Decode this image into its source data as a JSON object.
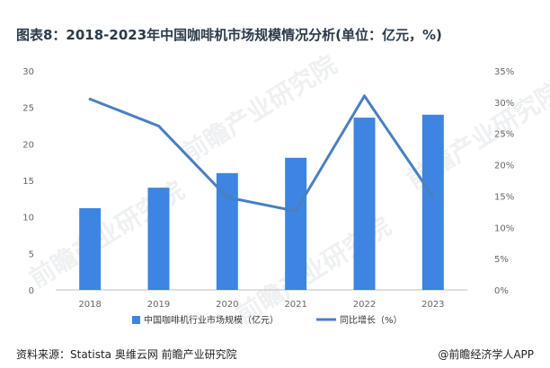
{
  "title": "图表8：2018-2023年中国咖啡机市场规模情况分析(单位：亿元，%)",
  "footer": {
    "source": "资料来源：Statista 奥维云网 前瞻产业研究院",
    "brand": "@前瞻经济学人APP"
  },
  "watermark": "前瞻产业研究院",
  "chart_data": {
    "type": "bar",
    "categories": [
      "2018",
      "2019",
      "2020",
      "2021",
      "2022",
      "2023"
    ],
    "series": [
      {
        "name": "中国咖啡机行业市场规模（亿元）",
        "type": "bar",
        "axis": "left",
        "values": [
          11.2,
          14.0,
          16.0,
          18.1,
          23.6,
          24.0
        ]
      },
      {
        "name": "同比增长（%）",
        "type": "line",
        "axis": "right",
        "values": [
          30.5,
          26.2,
          14.8,
          12.6,
          31.0,
          14.9
        ]
      }
    ],
    "left_axis": {
      "min": 0,
      "max": 30,
      "ticks": [
        "0",
        "5",
        "10",
        "15",
        "20",
        "25",
        "30"
      ]
    },
    "right_axis": {
      "min": 0,
      "max": 35,
      "ticks": [
        "0%",
        "5%",
        "10%",
        "15%",
        "20%",
        "25%",
        "30%",
        "35%"
      ]
    },
    "grid": false,
    "legend_position": "bottom",
    "colors": {
      "bar": "#3d85e0",
      "line": "#4a7fc1"
    }
  }
}
